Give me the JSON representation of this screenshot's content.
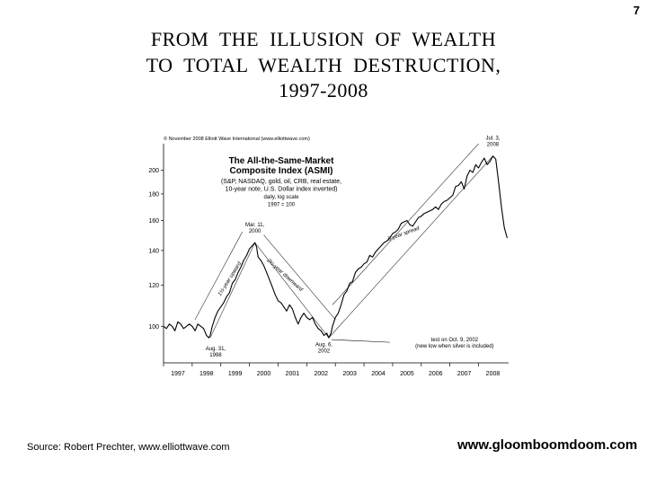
{
  "slide": {
    "page_number": "7",
    "title_lines": [
      "FROM  THE  ILLUSION  OF  WEALTH",
      "TO  TOTAL  WEALTH  DESTRUCTION,",
      "1997-2008"
    ],
    "source": "Source: Robert Prechter, www.elliottwave.com",
    "url": "www.gloomboomdoom.com"
  },
  "chart_data": {
    "type": "line",
    "copyright": "© November 2008 Elliott Wave International (www.elliottwave.com)",
    "title": "The All-the-Same-Market Composite Index (ASMI)",
    "subtitle": [
      "(S&P, NASDAQ, gold, oil, CRB, real estate,",
      "10-year note, U.S. Dollar index inverted)",
      "daily, log scale",
      "1997 = 100"
    ],
    "scale": "log",
    "grid": false,
    "ylim": [
      85,
      225
    ],
    "xlim": [
      1997.0,
      2009.05
    ],
    "yticks": [
      100,
      120,
      140,
      160,
      180,
      200
    ],
    "xticks": [
      "1997",
      "1998",
      "1999",
      "2000",
      "2001",
      "2002",
      "2003",
      "2004",
      "2005",
      "2006",
      "2007",
      "2008"
    ],
    "series": [
      {
        "x": [
          1997.0,
          1997.1,
          1997.2,
          1997.3,
          1997.4,
          1997.5,
          1997.6,
          1997.7,
          1997.8,
          1997.9,
          1998.0,
          1998.1,
          1998.2,
          1998.3,
          1998.4,
          1998.5,
          1998.58,
          1998.63,
          1998.7,
          1998.8,
          1998.9,
          1999.0,
          1999.1,
          1999.2,
          1999.3,
          1999.4,
          1999.5,
          1999.6,
          1999.7,
          1999.8,
          1999.9,
          2000.0,
          2000.1,
          2000.19,
          2000.25,
          2000.3,
          2000.4,
          2000.5,
          2000.6,
          2000.7,
          2000.8,
          2000.9,
          2001.0,
          2001.1,
          2001.2,
          2001.3,
          2001.4,
          2001.5,
          2001.6,
          2001.7,
          2001.8,
          2001.9,
          2002.0,
          2002.1,
          2002.2,
          2002.3,
          2002.4,
          2002.5,
          2002.6,
          2002.7,
          2002.77,
          2002.85,
          2002.9,
          2003.0,
          2003.1,
          2003.2,
          2003.3,
          2003.4,
          2003.5,
          2003.6,
          2003.7,
          2003.8,
          2003.9,
          2004.0,
          2004.1,
          2004.2,
          2004.3,
          2004.4,
          2004.5,
          2004.6,
          2004.7,
          2004.8,
          2004.9,
          2005.0,
          2005.1,
          2005.2,
          2005.3,
          2005.4,
          2005.5,
          2005.6,
          2005.7,
          2005.8,
          2005.9,
          2006.0,
          2006.1,
          2006.2,
          2006.3,
          2006.4,
          2006.5,
          2006.6,
          2006.7,
          2006.8,
          2006.9,
          2007.0,
          2007.1,
          2007.2,
          2007.3,
          2007.4,
          2007.5,
          2007.6,
          2007.7,
          2007.8,
          2007.9,
          2008.0,
          2008.1,
          2008.2,
          2008.3,
          2008.4,
          2008.5,
          2008.6,
          2008.7,
          2008.8,
          2008.9,
          2009.0
        ],
        "y": [
          100,
          99,
          101,
          100,
          98,
          102,
          101,
          99,
          100,
          101,
          100,
          98,
          101,
          100,
          99,
          96,
          95,
          96,
          100,
          104,
          107,
          109,
          111,
          114,
          116,
          121,
          123,
          127,
          130,
          134,
          137,
          141,
          143,
          145,
          142,
          136,
          134,
          131,
          127,
          123,
          119,
          115,
          112,
          111,
          109,
          107,
          110,
          108,
          104,
          101,
          104,
          106,
          104,
          103,
          104,
          101,
          99,
          98,
          96,
          97,
          95,
          97,
          100,
          104,
          106,
          110,
          115,
          117,
          121,
          122,
          127,
          129,
          130,
          132,
          133,
          137,
          136,
          139,
          141,
          143,
          145,
          146,
          148,
          151,
          152,
          154,
          158,
          159,
          160,
          157,
          156,
          159,
          162,
          163,
          165,
          166,
          167,
          168,
          170,
          168,
          172,
          174,
          175,
          177,
          179,
          186,
          187,
          190,
          184,
          195,
          200,
          198,
          205,
          202,
          207,
          211,
          205,
          208,
          213,
          210,
          190,
          170,
          155,
          148
        ]
      }
    ],
    "annotations": [
      {
        "text": [
          "Mar. 11,",
          "2000"
        ],
        "x": 2000.19,
        "y": 145
      },
      {
        "text": [
          "Aug. 31,",
          "1998"
        ],
        "x": 1998.63,
        "y": 95
      },
      {
        "text": [
          "Aug. 6,",
          "2002"
        ],
        "x": 2002.6,
        "y": 96
      },
      {
        "text": [
          "Jul. 3,",
          "2008"
        ],
        "x": 2008.5,
        "y": 213
      },
      {
        "text": [
          "test on Oct. 9, 2002",
          "(new low when silver is included)"
        ],
        "x": 2002.77,
        "y": 95
      },
      {
        "text": [
          "1½-year upward"
        ]
      },
      {
        "text": [
          "2½-year downward"
        ]
      },
      {
        "text": [
          "6-year spread"
        ]
      }
    ]
  }
}
